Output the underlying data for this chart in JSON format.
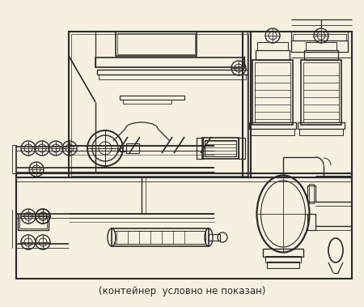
{
  "background_color": "#f5f0e0",
  "line_color": "#2a2a2a",
  "caption": "(контейнер  условно не показан)",
  "caption_fontsize": 8.5
}
